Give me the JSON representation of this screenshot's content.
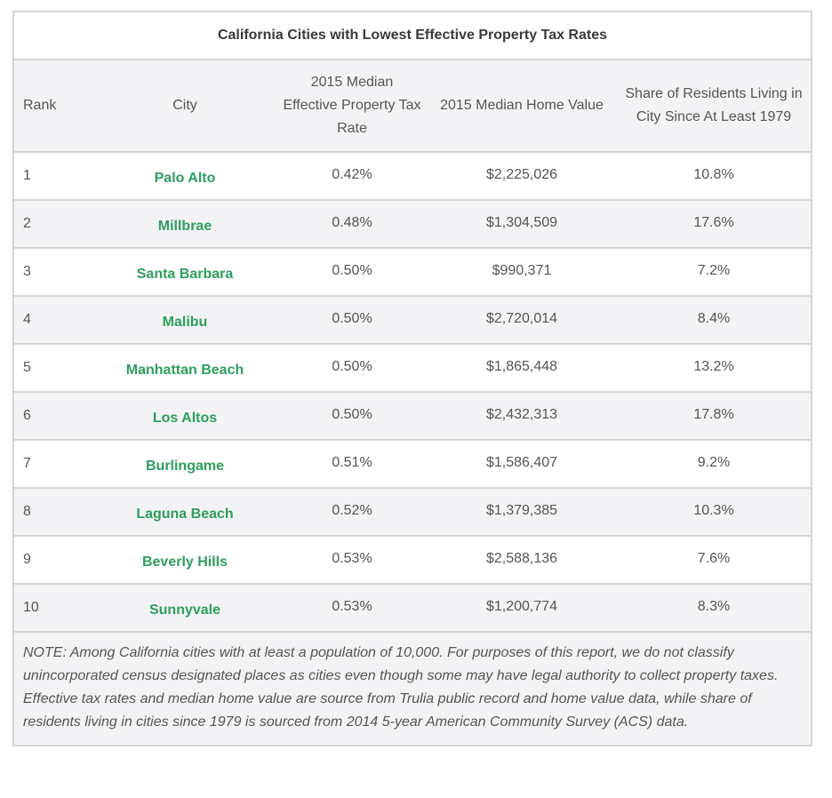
{
  "table": {
    "title": "California Cities with Lowest Effective Property Tax Rates",
    "headers": {
      "rank": "Rank",
      "city": "City",
      "rate": "2015 Median Effective Property Tax Rate",
      "value": "2015 Median Home Value",
      "share": "Share of Residents Living in City Since At Least 1979"
    },
    "rows": [
      {
        "rank": "1",
        "city": "Palo Alto",
        "rate": "0.42%",
        "value": "$2,225,026",
        "share": "10.8%"
      },
      {
        "rank": "2",
        "city": "Millbrae",
        "rate": "0.48%",
        "value": "$1,304,509",
        "share": "17.6%"
      },
      {
        "rank": "3",
        "city": "Santa Barbara",
        "rate": "0.50%",
        "value": "$990,371",
        "share": "7.2%"
      },
      {
        "rank": "4",
        "city": "Malibu",
        "rate": "0.50%",
        "value": "$2,720,014",
        "share": "8.4%"
      },
      {
        "rank": "5",
        "city": "Manhattan Beach",
        "rate": "0.50%",
        "value": "$1,865,448",
        "share": "13.2%"
      },
      {
        "rank": "6",
        "city": "Los Altos",
        "rate": "0.50%",
        "value": "$2,432,313",
        "share": "17.8%"
      },
      {
        "rank": "7",
        "city": "Burlingame",
        "rate": "0.51%",
        "value": "$1,586,407",
        "share": "9.2%"
      },
      {
        "rank": "8",
        "city": "Laguna Beach",
        "rate": "0.52%",
        "value": "$1,379,385",
        "share": "10.3%"
      },
      {
        "rank": "9",
        "city": "Beverly Hills",
        "rate": "0.53%",
        "value": "$2,588,136",
        "share": "7.6%"
      },
      {
        "rank": "10",
        "city": "Sunnyvale",
        "rate": "0.53%",
        "value": "$1,200,774",
        "share": "8.3%"
      }
    ],
    "note": "NOTE: Among California cities with at least a population of 10,000. For purposes of this report, we do not classify unincorporated census designated places as cities even though some may have legal authority to collect property taxes. Effective tax rates and median home value are source from Trulia public record and home value data, while share of residents living in cities since 1979 is sourced from 2014 5-year American Community Survey (ACS) data."
  },
  "colors": {
    "accent": "#2e9e5e",
    "stripe": "#f3f3f5",
    "border": "#d6d6d6"
  }
}
